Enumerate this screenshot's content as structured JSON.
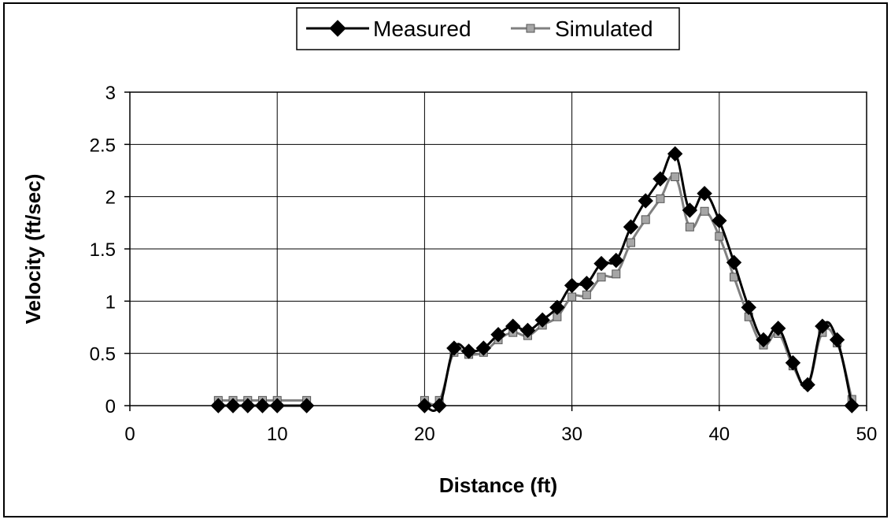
{
  "chart_data": {
    "type": "line",
    "title": "",
    "xlabel": "Distance (ft)",
    "ylabel": "Velocity (ft/sec)",
    "xlim": [
      0,
      50
    ],
    "ylim": [
      0,
      3
    ],
    "x_ticks": [
      "0",
      "10",
      "20",
      "30",
      "40",
      "50"
    ],
    "y_ticks": [
      "0",
      "0.5",
      "1",
      "1.5",
      "2",
      "2.5",
      "3"
    ],
    "grid": true,
    "legend_position": "top-center",
    "series": [
      {
        "name": "Measured",
        "color": "#000000",
        "marker": "diamond",
        "segments": [
          [
            [
              6,
              0
            ],
            [
              7,
              0
            ],
            [
              8,
              0
            ],
            [
              9,
              0
            ],
            [
              10,
              0
            ],
            [
              12,
              0
            ]
          ],
          [
            [
              20,
              0
            ],
            [
              21,
              0
            ],
            [
              22,
              0.55
            ],
            [
              23,
              0.52
            ],
            [
              24,
              0.55
            ],
            [
              25,
              0.68
            ],
            [
              26,
              0.76
            ],
            [
              27,
              0.72
            ],
            [
              28,
              0.82
            ],
            [
              29,
              0.94
            ],
            [
              30,
              1.15
            ],
            [
              31,
              1.17
            ],
            [
              32,
              1.36
            ],
            [
              33,
              1.39
            ],
            [
              34,
              1.71
            ],
            [
              35,
              1.96
            ],
            [
              36,
              2.17
            ],
            [
              37,
              2.41
            ],
            [
              38,
              1.87
            ],
            [
              39,
              2.03
            ],
            [
              40,
              1.77
            ],
            [
              41,
              1.37
            ],
            [
              42,
              0.94
            ],
            [
              43,
              0.63
            ],
            [
              44,
              0.74
            ],
            [
              45,
              0.41
            ],
            [
              46,
              0.2
            ],
            [
              47,
              0.76
            ],
            [
              48,
              0.63
            ],
            [
              49,
              0
            ]
          ]
        ]
      },
      {
        "name": "Simulated",
        "color": "#808080",
        "marker": "square",
        "segments": [
          [
            [
              6,
              0.05
            ],
            [
              7,
              0.05
            ],
            [
              8,
              0.05
            ],
            [
              9,
              0.05
            ],
            [
              10,
              0.05
            ],
            [
              12,
              0.05
            ]
          ],
          [
            [
              20,
              0.05
            ],
            [
              21,
              0.05
            ],
            [
              22,
              0.51
            ],
            [
              23,
              0.49
            ],
            [
              24,
              0.51
            ],
            [
              25,
              0.63
            ],
            [
              26,
              0.7
            ],
            [
              27,
              0.67
            ],
            [
              28,
              0.77
            ],
            [
              29,
              0.85
            ],
            [
              30,
              1.04
            ],
            [
              31,
              1.06
            ],
            [
              32,
              1.23
            ],
            [
              33,
              1.26
            ],
            [
              34,
              1.56
            ],
            [
              35,
              1.78
            ],
            [
              36,
              1.98
            ],
            [
              37,
              2.19
            ],
            [
              38,
              1.71
            ],
            [
              39,
              1.86
            ],
            [
              40,
              1.62
            ],
            [
              41,
              1.23
            ],
            [
              42,
              0.85
            ],
            [
              43,
              0.58
            ],
            [
              44,
              0.69
            ],
            [
              45,
              0.38
            ],
            [
              46,
              0.2
            ],
            [
              47,
              0.7
            ],
            [
              48,
              0.6
            ],
            [
              49,
              0.06
            ]
          ]
        ]
      }
    ]
  }
}
